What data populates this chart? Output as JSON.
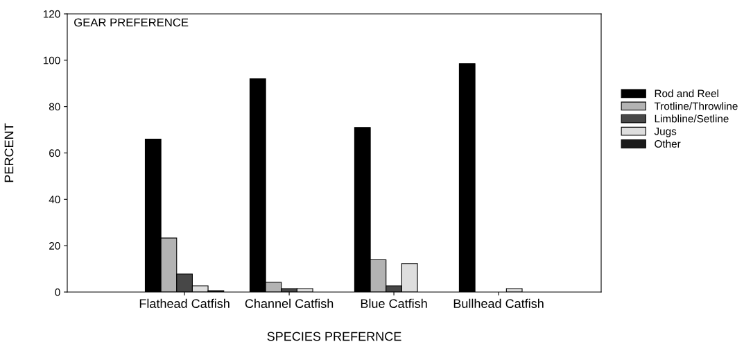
{
  "chart_data": {
    "type": "bar",
    "title": "GEAR PREFERENCE",
    "xlabel": "SPECIES PREFERNCE",
    "ylabel": "PERCENT",
    "categories": [
      "Flathead Catfish",
      "Channel Catfish",
      "Blue Catfish",
      "Bullhead Catfish"
    ],
    "series": [
      {
        "name": "Rod and Reel",
        "color": "#000000",
        "values": [
          66,
          92,
          71,
          98.5
        ]
      },
      {
        "name": "Trotline/Throwline",
        "color": "#b3b3b3",
        "values": [
          23.3,
          4.2,
          13.9,
          null
        ]
      },
      {
        "name": "Limbline/Setline",
        "color": "#474747",
        "values": [
          7.8,
          1.5,
          2.7,
          null
        ]
      },
      {
        "name": "Jugs",
        "color": "#dedede",
        "values": [
          2.7,
          1.5,
          12.3,
          1.5
        ]
      },
      {
        "name": "Other",
        "color": "#1a1a1a",
        "values": [
          0.6,
          null,
          null,
          null
        ]
      }
    ],
    "ylim": [
      0,
      120
    ],
    "yticks": [
      0,
      20,
      40,
      60,
      80,
      100,
      120
    ],
    "grid": false,
    "legend": "right"
  }
}
